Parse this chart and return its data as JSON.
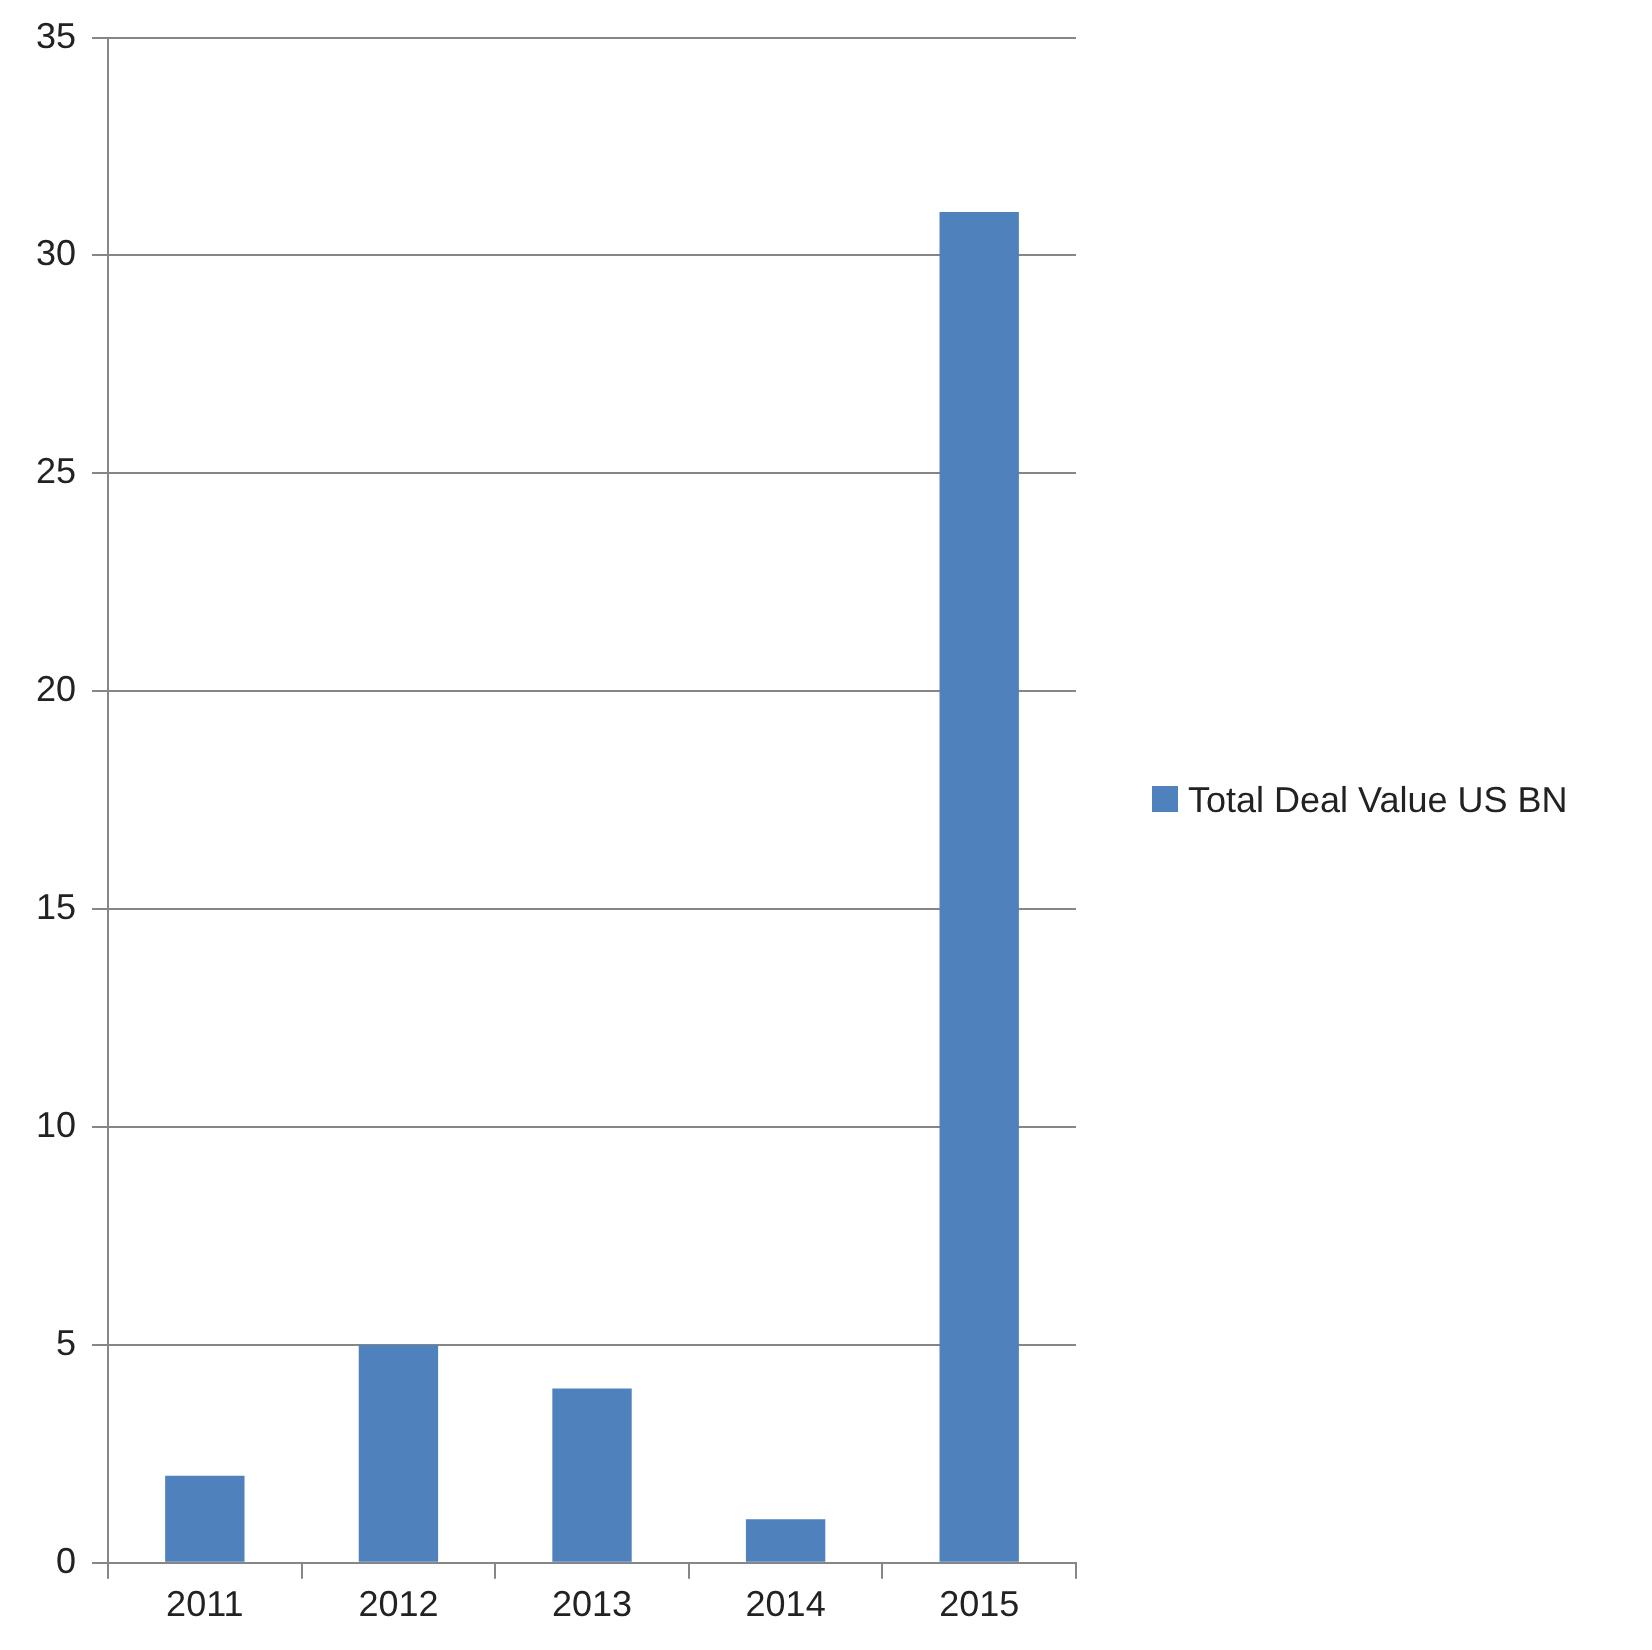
{
  "chart_data": {
    "type": "bar",
    "categories": [
      "2011",
      "2012",
      "2013",
      "2014",
      "2015"
    ],
    "series": [
      {
        "name": "Total Deal Value US BN",
        "color": "#4f81bd",
        "values": [
          2,
          5,
          4,
          1,
          31
        ]
      }
    ],
    "ylim": [
      0,
      35
    ],
    "yticks": [
      0,
      5,
      10,
      15,
      20,
      25,
      30,
      35
    ],
    "grid": "y",
    "legend": "right"
  }
}
